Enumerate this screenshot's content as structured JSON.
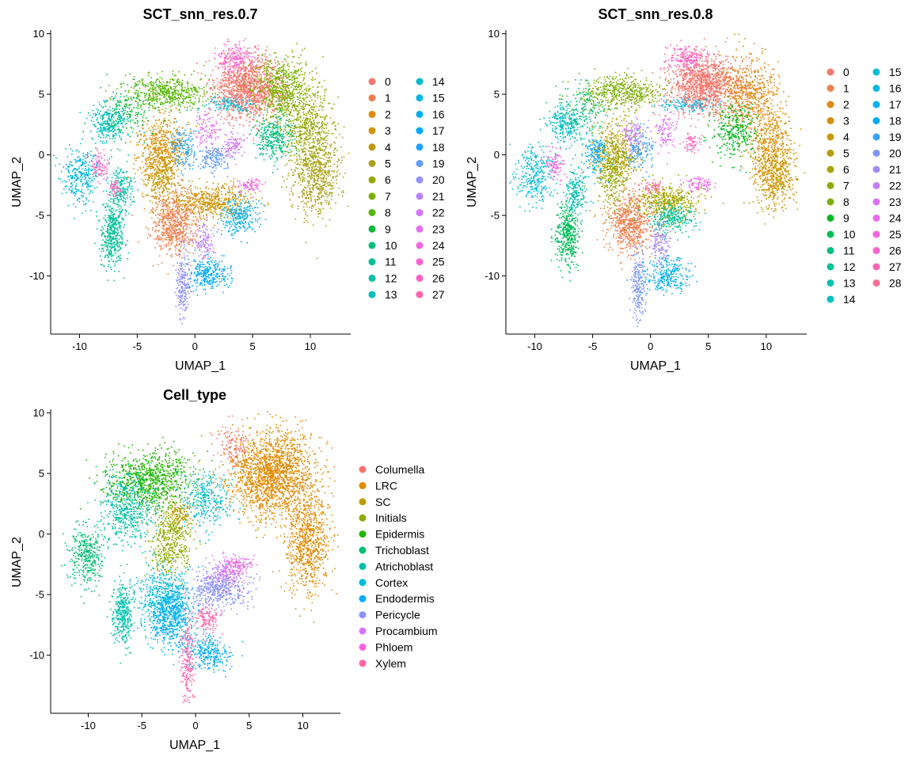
{
  "chart_data": [
    {
      "type": "scatter",
      "title": "SCT_snn_res.0.7",
      "xlabel": "UMAP_1",
      "ylabel": "UMAP_2",
      "xlim": [
        -12.5,
        13.5
      ],
      "ylim": [
        -14.8,
        10.3
      ],
      "x_ticks": [
        "-10",
        "-5",
        "0",
        "5",
        "10"
      ],
      "x_tick_values": [
        -10,
        -5,
        0,
        5,
        10
      ],
      "y_ticks": [
        "10",
        "5",
        "0",
        "-5",
        "-10"
      ],
      "y_tick_values": [
        10,
        5,
        0,
        -5,
        -10
      ],
      "legend_position": "right",
      "legend_columns": 2,
      "legend": [
        "0",
        "1",
        "2",
        "3",
        "4",
        "5",
        "6",
        "7",
        "8",
        "9",
        "10",
        "11",
        "12",
        "13",
        "14",
        "15",
        "16",
        "17",
        "18",
        "19",
        "20",
        "21",
        "22",
        "23",
        "24",
        "25",
        "26",
        "27"
      ],
      "colors": [
        "#F8766D",
        "#F07F4B",
        "#E38900",
        "#D39200",
        "#C09B00",
        "#AAA219",
        "#94A900",
        "#79B000",
        "#55B700",
        "#00BA38",
        "#00BF7D",
        "#00C095",
        "#00C1AB",
        "#00BEBE",
        "#00BAD0",
        "#00B6E0",
        "#00B0F6",
        "#00A9FF",
        "#1DA2FF",
        "#619CFF",
        "#9590FF",
        "#B983FF",
        "#D376FF",
        "#E76BF3",
        "#F564E3",
        "#FD61D1",
        "#FF61C3",
        "#FF64B0"
      ],
      "clusters": [
        {
          "name": "0",
          "cx": 4.6,
          "cy": 5.6,
          "sx": 1.5,
          "sy": 1.3,
          "n": 1300
        },
        {
          "name": "1",
          "cx": -1.8,
          "cy": -5.6,
          "sx": 1.0,
          "sy": 1.3,
          "n": 700
        },
        {
          "name": "2",
          "cx": -3.0,
          "cy": 0.3,
          "sx": 1.0,
          "sy": 1.5,
          "n": 500
        },
        {
          "name": "3",
          "cx": 1.6,
          "cy": -3.8,
          "sx": 1.6,
          "sy": 0.7,
          "n": 500
        },
        {
          "name": "4",
          "cx": -3.0,
          "cy": -1.5,
          "sx": 0.8,
          "sy": 1.5,
          "n": 300
        },
        {
          "name": "5",
          "cx": 10.5,
          "cy": -1.5,
          "sx": 1.1,
          "sy": 1.8,
          "n": 700
        },
        {
          "name": "6",
          "cx": 9.6,
          "cy": 2.5,
          "sx": 1.0,
          "sy": 1.8,
          "n": 500
        },
        {
          "name": "7",
          "cx": 7.5,
          "cy": 5.5,
          "sx": 1.2,
          "sy": 1.3,
          "n": 600
        },
        {
          "name": "8",
          "cx": -2.5,
          "cy": 5.2,
          "sx": 1.8,
          "sy": 0.7,
          "n": 500
        },
        {
          "name": "9",
          "cx": -6.0,
          "cy": 3.5,
          "sx": 1.2,
          "sy": 1.2,
          "n": 200
        },
        {
          "name": "10",
          "cx": 6.8,
          "cy": 1.5,
          "sx": 0.8,
          "sy": 0.9,
          "n": 300
        },
        {
          "name": "11",
          "cx": -7.2,
          "cy": -6.5,
          "sx": 0.5,
          "sy": 1.3,
          "n": 400
        },
        {
          "name": "12",
          "cx": -6.5,
          "cy": -3.0,
          "sx": 0.5,
          "sy": 1.0,
          "n": 200
        },
        {
          "name": "13",
          "cx": -7.5,
          "cy": 2.6,
          "sx": 0.8,
          "sy": 0.8,
          "n": 250
        },
        {
          "name": "14",
          "cx": 3.0,
          "cy": 4.2,
          "sx": 1.2,
          "sy": 0.3,
          "n": 120
        },
        {
          "name": "15",
          "cx": -10.0,
          "cy": -1.6,
          "sx": 0.8,
          "sy": 1.2,
          "n": 300
        },
        {
          "name": "16",
          "cx": 3.8,
          "cy": -5.0,
          "sx": 0.8,
          "sy": 0.8,
          "n": 250
        },
        {
          "name": "17",
          "cx": 1.2,
          "cy": -9.8,
          "sx": 1.0,
          "sy": 0.7,
          "n": 280
        },
        {
          "name": "18",
          "cx": -1.0,
          "cy": 0.5,
          "sx": 0.6,
          "sy": 0.9,
          "n": 150
        },
        {
          "name": "19",
          "cx": 1.6,
          "cy": -0.2,
          "sx": 0.7,
          "sy": 0.6,
          "n": 150
        },
        {
          "name": "20",
          "cx": -1.1,
          "cy": -10.8,
          "sx": 0.3,
          "sy": 1.6,
          "n": 200
        },
        {
          "name": "21",
          "cx": 0.8,
          "cy": -7.2,
          "sx": 0.4,
          "sy": 0.8,
          "n": 120
        },
        {
          "name": "22",
          "cx": 3.2,
          "cy": 0.8,
          "sx": 0.5,
          "sy": 0.5,
          "n": 100
        },
        {
          "name": "23",
          "cx": 1.0,
          "cy": 2.2,
          "sx": 0.6,
          "sy": 0.9,
          "n": 100
        },
        {
          "name": "24",
          "cx": 4.8,
          "cy": -2.5,
          "sx": 0.6,
          "sy": 0.3,
          "n": 80
        },
        {
          "name": "25",
          "cx": 3.5,
          "cy": 8.0,
          "sx": 0.9,
          "sy": 0.6,
          "n": 180
        },
        {
          "name": "26",
          "cx": -8.3,
          "cy": -0.8,
          "sx": 0.4,
          "sy": 0.6,
          "n": 90
        },
        {
          "name": "27",
          "cx": -7.0,
          "cy": -2.8,
          "sx": 0.3,
          "sy": 0.3,
          "n": 50
        }
      ]
    },
    {
      "type": "scatter",
      "title": "SCT_snn_res.0.8",
      "xlabel": "UMAP_1",
      "ylabel": "UMAP_2",
      "xlim": [
        -12.5,
        13.5
      ],
      "ylim": [
        -14.8,
        10.3
      ],
      "x_ticks": [
        "-10",
        "-5",
        "0",
        "5",
        "10"
      ],
      "x_tick_values": [
        -10,
        -5,
        0,
        5,
        10
      ],
      "y_ticks": [
        "10",
        "5",
        "0",
        "-5",
        "-10"
      ],
      "y_tick_values": [
        10,
        5,
        0,
        -5,
        -10
      ],
      "legend_position": "right",
      "legend_columns": 2,
      "legend": [
        "0",
        "1",
        "2",
        "3",
        "4",
        "5",
        "6",
        "7",
        "8",
        "9",
        "10",
        "11",
        "12",
        "13",
        "14",
        "15",
        "16",
        "17",
        "18",
        "19",
        "20",
        "21",
        "22",
        "23",
        "24",
        "25",
        "26",
        "27",
        "28"
      ],
      "colors": [
        "#F8766D",
        "#F07F4E",
        "#E68613",
        "#DA8E00",
        "#CC9600",
        "#BB9D00",
        "#A8A400",
        "#93AA00",
        "#7BAE00",
        "#00B81F",
        "#00BC59",
        "#00BF7D",
        "#00C19A",
        "#00C1B4",
        "#00BFC4",
        "#00BCD8",
        "#00B8E7",
        "#00B2F3",
        "#00ABFD",
        "#35A2FF",
        "#7C96FF",
        "#A58AFF",
        "#C77CFF",
        "#DE71F9",
        "#ED68ED",
        "#F863DF",
        "#FF61CC",
        "#FF62B7",
        "#FF6C91"
      ],
      "clusters": [
        {
          "name": "0",
          "cx": 4.6,
          "cy": 5.8,
          "sx": 1.5,
          "sy": 1.2,
          "n": 1200
        },
        {
          "name": "1",
          "cx": -1.8,
          "cy": -5.6,
          "sx": 1.0,
          "sy": 1.3,
          "n": 650
        },
        {
          "name": "2",
          "cx": 8.3,
          "cy": 5.0,
          "sx": 1.3,
          "sy": 1.6,
          "n": 600
        },
        {
          "name": "3",
          "cx": 10.3,
          "cy": 0.5,
          "sx": 0.9,
          "sy": 1.8,
          "n": 500
        },
        {
          "name": "4",
          "cx": 10.8,
          "cy": -2.0,
          "sx": 0.9,
          "sy": 1.3,
          "n": 400
        },
        {
          "name": "5",
          "cx": -3.0,
          "cy": 0.2,
          "sx": 1.0,
          "sy": 1.3,
          "n": 450
        },
        {
          "name": "6",
          "cx": 1.5,
          "cy": -3.8,
          "sx": 1.5,
          "sy": 0.7,
          "n": 450
        },
        {
          "name": "7",
          "cx": -3.3,
          "cy": -1.5,
          "sx": 0.7,
          "sy": 1.4,
          "n": 300
        },
        {
          "name": "8",
          "cx": -2.5,
          "cy": 5.2,
          "sx": 1.8,
          "sy": 0.7,
          "n": 500
        },
        {
          "name": "9",
          "cx": 7.2,
          "cy": 2.0,
          "sx": 0.9,
          "sy": 1.1,
          "n": 300
        },
        {
          "name": "10",
          "cx": -7.2,
          "cy": -6.5,
          "sx": 0.5,
          "sy": 1.3,
          "n": 400
        },
        {
          "name": "11",
          "cx": -6.0,
          "cy": 3.5,
          "sx": 1.1,
          "sy": 1.1,
          "n": 200
        },
        {
          "name": "12",
          "cx": 1.8,
          "cy": -5.2,
          "sx": 1.0,
          "sy": 0.6,
          "n": 250
        },
        {
          "name": "13",
          "cx": -6.5,
          "cy": -3.0,
          "sx": 0.5,
          "sy": 1.0,
          "n": 200
        },
        {
          "name": "14",
          "cx": -7.5,
          "cy": 2.6,
          "sx": 0.7,
          "sy": 0.7,
          "n": 200
        },
        {
          "name": "15",
          "cx": -10.0,
          "cy": -1.6,
          "sx": 0.8,
          "sy": 1.2,
          "n": 300
        },
        {
          "name": "16",
          "cx": 3.0,
          "cy": 4.2,
          "sx": 1.2,
          "sy": 0.3,
          "n": 120
        },
        {
          "name": "17",
          "cx": 1.4,
          "cy": -9.8,
          "sx": 1.0,
          "sy": 0.7,
          "n": 280
        },
        {
          "name": "18",
          "cx": -4.8,
          "cy": 0.0,
          "sx": 0.6,
          "sy": 0.8,
          "n": 150
        },
        {
          "name": "19",
          "cx": -1.0,
          "cy": 0.5,
          "sx": 0.6,
          "sy": 0.9,
          "n": 150
        },
        {
          "name": "20",
          "cx": -1.1,
          "cy": -10.8,
          "sx": 0.3,
          "sy": 1.6,
          "n": 200
        },
        {
          "name": "21",
          "cx": 0.8,
          "cy": -7.2,
          "sx": 0.4,
          "sy": 0.8,
          "n": 120
        },
        {
          "name": "22",
          "cx": -1.6,
          "cy": 1.8,
          "sx": 0.5,
          "sy": 0.6,
          "n": 100
        },
        {
          "name": "23",
          "cx": 1.2,
          "cy": 2.0,
          "sx": 0.5,
          "sy": 0.8,
          "n": 100
        },
        {
          "name": "24",
          "cx": 4.2,
          "cy": -2.4,
          "sx": 0.6,
          "sy": 0.3,
          "n": 80
        },
        {
          "name": "25",
          "cx": -8.3,
          "cy": -0.8,
          "sx": 0.4,
          "sy": 0.6,
          "n": 90
        },
        {
          "name": "26",
          "cx": 3.0,
          "cy": 8.0,
          "sx": 0.8,
          "sy": 0.6,
          "n": 160
        },
        {
          "name": "27",
          "cx": 3.5,
          "cy": 1.0,
          "sx": 0.4,
          "sy": 0.4,
          "n": 60
        },
        {
          "name": "28",
          "cx": 0.2,
          "cy": -2.6,
          "sx": 0.4,
          "sy": 0.3,
          "n": 60
        }
      ]
    },
    {
      "type": "scatter",
      "title": "Cell_type",
      "xlabel": "UMAP_1",
      "ylabel": "UMAP_2",
      "xlim": [
        -13.5,
        13.5
      ],
      "ylim": [
        -14.8,
        10.3
      ],
      "x_ticks": [
        "-10",
        "-5",
        "0",
        "5",
        "10"
      ],
      "x_tick_values": [
        -10,
        -5,
        0,
        5,
        10
      ],
      "y_ticks": [
        "10",
        "5",
        "0",
        "-5",
        "-10"
      ],
      "y_tick_values": [
        10,
        5,
        0,
        -5,
        -10
      ],
      "legend_position": "right",
      "legend_columns": 1,
      "legend": [
        "Columella",
        "LRC",
        "SC",
        "Initials",
        "Epidermis",
        "Trichoblast",
        "Atrichoblast",
        "Cortex",
        "Endodermis",
        "Pericycle",
        "Procambium",
        "Phloem",
        "Xylem"
      ],
      "colors": [
        "#F8766D",
        "#E18A00",
        "#BE9C00",
        "#8CAB00",
        "#24B700",
        "#00BE70",
        "#00C1AB",
        "#00BBDA",
        "#00ACFC",
        "#8B93FF",
        "#D575FE",
        "#F962DD",
        "#FF65AC"
      ],
      "clusters": [
        {
          "name": "LRC",
          "cx": 7.0,
          "cy": 5.0,
          "sx": 2.0,
          "sy": 1.8,
          "n": 1800
        },
        {
          "name": "LRC",
          "cx": 10.4,
          "cy": -0.5,
          "sx": 1.0,
          "sy": 2.2,
          "n": 800
        },
        {
          "name": "Columella",
          "cx": 3.5,
          "cy": 7.5,
          "sx": 0.8,
          "sy": 0.8,
          "n": 120
        },
        {
          "name": "Epidermis",
          "cx": -4.2,
          "cy": 4.5,
          "sx": 2.0,
          "sy": 1.2,
          "n": 900
        },
        {
          "name": "Initials",
          "cx": -2.5,
          "cy": -0.5,
          "sx": 1.0,
          "sy": 1.6,
          "n": 450
        },
        {
          "name": "SC",
          "cx": -1.5,
          "cy": 1.5,
          "sx": 0.6,
          "sy": 0.6,
          "n": 120
        },
        {
          "name": "Atrichoblast",
          "cx": -6.5,
          "cy": 2.0,
          "sx": 1.3,
          "sy": 1.5,
          "n": 500
        },
        {
          "name": "Atrichoblast",
          "cx": -6.8,
          "cy": -6.5,
          "sx": 0.5,
          "sy": 1.3,
          "n": 350
        },
        {
          "name": "Trichoblast",
          "cx": -10.2,
          "cy": -1.8,
          "sx": 0.8,
          "sy": 1.2,
          "n": 350
        },
        {
          "name": "Cortex",
          "cx": -3.0,
          "cy": -5.5,
          "sx": 1.2,
          "sy": 1.4,
          "n": 550
        },
        {
          "name": "Cortex",
          "cx": 1.0,
          "cy": 3.0,
          "sx": 1.2,
          "sy": 1.2,
          "n": 300
        },
        {
          "name": "Endodermis",
          "cx": -2.2,
          "cy": -6.8,
          "sx": 0.9,
          "sy": 1.3,
          "n": 450
        },
        {
          "name": "Endodermis",
          "cx": 1.2,
          "cy": -9.8,
          "sx": 1.0,
          "sy": 0.7,
          "n": 280
        },
        {
          "name": "Pericycle",
          "cx": 2.2,
          "cy": -4.5,
          "sx": 1.3,
          "sy": 0.8,
          "n": 450
        },
        {
          "name": "Procambium",
          "cx": 3.0,
          "cy": -3.0,
          "sx": 0.8,
          "sy": 0.6,
          "n": 200
        },
        {
          "name": "Phloem",
          "cx": 4.0,
          "cy": -2.4,
          "sx": 0.6,
          "sy": 0.3,
          "n": 80
        },
        {
          "name": "Xylem",
          "cx": -0.8,
          "cy": -10.5,
          "sx": 0.3,
          "sy": 1.8,
          "n": 220
        },
        {
          "name": "Xylem",
          "cx": 1.0,
          "cy": -7.0,
          "sx": 0.5,
          "sy": 0.6,
          "n": 120
        }
      ]
    }
  ]
}
